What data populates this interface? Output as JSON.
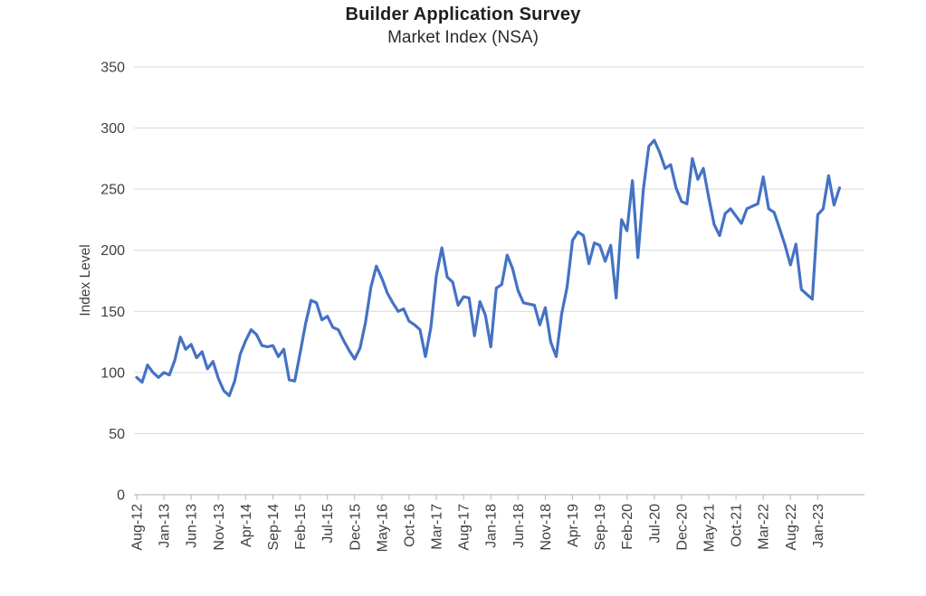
{
  "title": "Builder Application Survey",
  "subtitle": "Market Index (NSA)",
  "colors": {
    "line": "#4472C4",
    "gridline": "#D9D9D9",
    "axis": "#BFBFBF",
    "tick_label": "#3F3F3F",
    "title_text": "#1F1F1F",
    "background": "#FFFFFF"
  },
  "chart_data": {
    "type": "line",
    "title": "Builder Application Survey",
    "subtitle": "Market Index (NSA)",
    "xlabel": "",
    "ylabel": "Index Level",
    "ylim": [
      0,
      350
    ],
    "yticks": [
      0,
      50,
      100,
      150,
      200,
      250,
      300,
      350
    ],
    "grid": "horizontal",
    "legend": "none",
    "line_color": "#4472C4",
    "x_tick_labels": [
      "Aug-12",
      "Jan-13",
      "Jun-13",
      "Nov-13",
      "Apr-14",
      "Sep-14",
      "Feb-15",
      "Jul-15",
      "Dec-15",
      "May-16",
      "Oct-16",
      "Mar-17",
      "Aug-17",
      "Jan-18",
      "Jun-18",
      "Nov-18",
      "Apr-19",
      "Sep-19",
      "Feb-20",
      "Jul-20",
      "Dec-20",
      "May-21",
      "Oct-21",
      "Mar-22",
      "Aug-22",
      "Jan-23"
    ],
    "x_tick_every": 5,
    "categories": [
      "Aug-12",
      "Sep-12",
      "Oct-12",
      "Nov-12",
      "Dec-12",
      "Jan-13",
      "Feb-13",
      "Mar-13",
      "Apr-13",
      "May-13",
      "Jun-13",
      "Jul-13",
      "Aug-13",
      "Sep-13",
      "Oct-13",
      "Nov-13",
      "Dec-13",
      "Jan-14",
      "Feb-14",
      "Mar-14",
      "Apr-14",
      "May-14",
      "Jun-14",
      "Jul-14",
      "Aug-14",
      "Sep-14",
      "Oct-14",
      "Nov-14",
      "Dec-14",
      "Jan-15",
      "Feb-15",
      "Mar-15",
      "Apr-15",
      "May-15",
      "Jun-15",
      "Jul-15",
      "Aug-15",
      "Sep-15",
      "Oct-15",
      "Nov-15",
      "Dec-15",
      "Jan-16",
      "Feb-16",
      "Mar-16",
      "Apr-16",
      "May-16",
      "Jun-16",
      "Jul-16",
      "Aug-16",
      "Sep-16",
      "Oct-16",
      "Nov-16",
      "Dec-16",
      "Jan-17",
      "Feb-17",
      "Mar-17",
      "Apr-17",
      "May-17",
      "Jun-17",
      "Jul-17",
      "Aug-17",
      "Sep-17",
      "Oct-17",
      "Nov-17",
      "Dec-17",
      "Jan-18",
      "Feb-18",
      "Mar-18",
      "Apr-18",
      "May-18",
      "Jun-18",
      "Jul-18",
      "Aug-18",
      "Sep-18",
      "Oct-18",
      "Nov-18",
      "Dec-18",
      "Jan-19",
      "Feb-19",
      "Mar-19",
      "Apr-19",
      "May-19",
      "Jun-19",
      "Jul-19",
      "Aug-19",
      "Sep-19",
      "Oct-19",
      "Nov-19",
      "Dec-19",
      "Jan-20",
      "Feb-20",
      "Mar-20",
      "Apr-20",
      "May-20",
      "Jun-20",
      "Jul-20",
      "Aug-20",
      "Sep-20",
      "Oct-20",
      "Nov-20",
      "Dec-20",
      "Jan-21",
      "Feb-21",
      "Mar-21",
      "Apr-21",
      "May-21",
      "Jun-21",
      "Jul-21",
      "Aug-21",
      "Sep-21",
      "Oct-21",
      "Nov-21",
      "Dec-21",
      "Jan-22",
      "Feb-22",
      "Mar-22",
      "Apr-22",
      "May-22",
      "Jun-22",
      "Jul-22",
      "Aug-22",
      "Sep-22",
      "Oct-22",
      "Nov-22",
      "Dec-22",
      "Jan-23",
      "Feb-23",
      "Mar-23",
      "Apr-23",
      "May-23"
    ],
    "values": [
      96,
      92,
      106,
      100,
      96,
      100,
      98,
      110,
      129,
      119,
      123,
      112,
      117,
      103,
      109,
      95,
      85,
      81,
      93,
      115,
      126,
      135,
      131,
      122,
      121,
      122,
      113,
      119,
      94,
      93,
      116,
      140,
      159,
      157,
      143,
      146,
      137,
      135,
      126,
      118,
      111,
      120,
      141,
      170,
      187,
      177,
      165,
      157,
      150,
      152,
      142,
      139,
      135,
      113,
      137,
      179,
      202,
      178,
      174,
      155,
      162,
      161,
      130,
      158,
      147,
      121,
      169,
      172,
      196,
      185,
      167,
      157,
      156,
      155,
      139,
      153,
      125,
      113,
      148,
      170,
      208,
      215,
      212,
      189,
      206,
      204,
      191,
      204,
      161,
      225,
      216,
      257,
      194,
      250,
      285,
      290,
      280,
      267,
      270,
      251,
      240,
      238,
      275,
      258,
      267,
      243,
      221,
      212,
      230,
      234,
      228,
      222,
      234,
      236,
      238,
      260,
      234,
      231,
      218,
      204,
      188,
      205,
      168,
      164,
      160,
      229,
      234,
      261,
      237,
      251
    ]
  }
}
